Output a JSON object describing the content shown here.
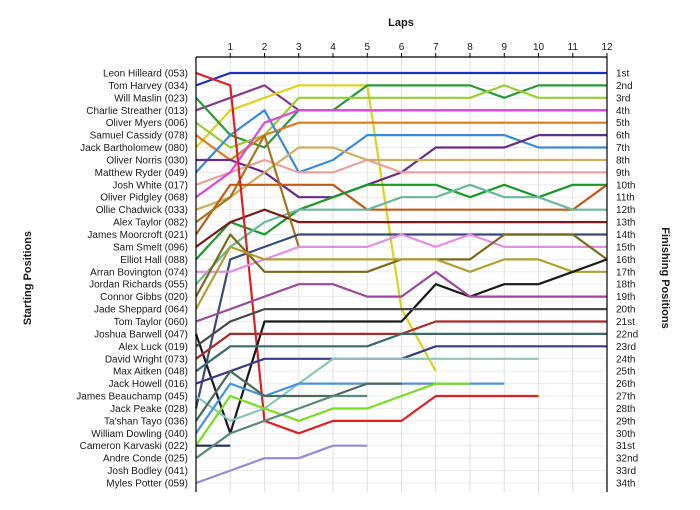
{
  "chart_data": {
    "type": "line",
    "title": "",
    "xlabel": "Laps",
    "ylabel_left": "Starting Positions",
    "ylabel_right": "Finishing Positions",
    "x_ticks": [
      "1",
      "2",
      "3",
      "4",
      "5",
      "6",
      "7",
      "8",
      "9",
      "10",
      "11",
      "12"
    ],
    "xlim": [
      0,
      12
    ],
    "ylim": [
      1,
      34
    ],
    "y_inverted": true,
    "grid": true,
    "drivers": [
      "Leon Hilleard (053)",
      "Tom Harvey (034)",
      "Will Maslin (023)",
      "Charlie Streather (013)",
      "Oliver Myers (006)",
      "Samuel Cassidy (078)",
      "Jack Bartholomew (080)",
      "Oliver Norris (030)",
      "Matthew Ryder (049)",
      "Josh White (017)",
      "Oliver Pidgley (068)",
      "Ollie Chadwick (033)",
      "Alex Taylor (082)",
      "James Moorcroft (021)",
      "Sam Smelt (096)",
      "Elliot Hall (088)",
      "Arran Bovington (074)",
      "Jordan Richards (055)",
      "Connor Gibbs (020)",
      "Jade Sheppard (064)",
      "Tom Taylor (060)",
      "Joshua Barwell (047)",
      "Alex Luck (019)",
      "David Wright (073)",
      "Max Aitken (048)",
      "Jack Howell (016)",
      "James Beauchamp (045)",
      "Jack Peake (028)",
      "Ta'shan Tayo (036)",
      "William Dowling (040)",
      "Cameron Karvaski (022)",
      "Andre Conde (025)",
      "Josh Bodley (041)",
      "Myles Potter (059)"
    ],
    "finishing_positions": [
      "1st",
      "2nd",
      "3rd",
      "4th",
      "5th",
      "6th",
      "7th",
      "8th",
      "9th",
      "10th",
      "11th",
      "12th",
      "13th",
      "14th",
      "15th",
      "16th",
      "17th",
      "18th",
      "19th",
      "20th",
      "21st",
      "22nd",
      "23rd",
      "24th",
      "25th",
      "26th",
      "27th",
      "28th",
      "29th",
      "30th",
      "31st",
      "32nd",
      "33rd",
      "34th"
    ],
    "series": [
      {
        "color": "#1f2fbf",
        "values": [
          2,
          1,
          1,
          1,
          1,
          1,
          1,
          1,
          1,
          1,
          1,
          1,
          1
        ]
      },
      {
        "color": "#8a3a8a",
        "values": [
          4,
          3,
          2,
          4,
          4,
          4,
          4,
          4,
          4,
          4,
          4,
          4,
          4
        ]
      },
      {
        "color": "#e0d020",
        "values": [
          7,
          4,
          3,
          2,
          2,
          2,
          20,
          25,
          null,
          null,
          null,
          null,
          null
        ]
      },
      {
        "color": "#2a9a3a",
        "values": [
          3,
          6,
          7,
          4,
          4,
          2,
          2,
          2,
          2,
          3,
          2,
          2,
          2
        ]
      },
      {
        "color": "#9acd32",
        "values": [
          5,
          7,
          6,
          3,
          3,
          3,
          3,
          3,
          3,
          2,
          3,
          3,
          3
        ]
      },
      {
        "color": "#e07820",
        "values": [
          6,
          8,
          6,
          5,
          5,
          5,
          5,
          5,
          5,
          5,
          5,
          5,
          5
        ]
      },
      {
        "color": "#3a8ad8",
        "values": [
          9,
          6,
          4,
          9,
          8,
          6,
          6,
          6,
          6,
          6,
          7,
          7,
          7
        ]
      },
      {
        "color": "#6a2a8a",
        "values": [
          8,
          8,
          9,
          11,
          11,
          10,
          9,
          7,
          7,
          7,
          6,
          6,
          6
        ]
      },
      {
        "color": "#e8a0a0",
        "values": [
          10,
          9,
          8,
          9,
          9,
          8,
          9,
          9,
          9,
          9,
          9,
          9,
          9
        ]
      },
      {
        "color": "#ccb060",
        "values": [
          12,
          11,
          9,
          7,
          7,
          8,
          8,
          8,
          8,
          8,
          8,
          8,
          8
        ]
      },
      {
        "color": "#d84ad8",
        "values": [
          11,
          9,
          5,
          4,
          4,
          4,
          4,
          4,
          4,
          4,
          4,
          4,
          4
        ]
      },
      {
        "color": "#c45a1a",
        "values": [
          14,
          10,
          10,
          10,
          10,
          12,
          12,
          12,
          12,
          12,
          12,
          12,
          10
        ]
      },
      {
        "color": "#189a2a",
        "values": [
          16,
          13,
          14,
          12,
          11,
          10,
          10,
          10,
          11,
          10,
          11,
          10,
          10
        ]
      },
      {
        "color": "#6ab8a0",
        "values": [
          18,
          15,
          13,
          12,
          12,
          12,
          11,
          11,
          10,
          11,
          11,
          12,
          12
        ]
      },
      {
        "color": "#7a1a1a",
        "values": [
          15,
          13,
          12,
          13,
          13,
          13,
          13,
          13,
          13,
          13,
          13,
          13,
          13
        ]
      },
      {
        "color": "#a8741a",
        "values": [
          13,
          11,
          6,
          15,
          null,
          null,
          null,
          null,
          null,
          null,
          null,
          null,
          null
        ]
      },
      {
        "color": "#3a4a7a",
        "values": [
          28,
          16,
          15,
          14,
          14,
          14,
          14,
          14,
          14,
          14,
          14,
          14,
          14
        ]
      },
      {
        "color": "#e02020",
        "values": [
          1,
          2,
          29,
          30,
          29,
          29,
          29,
          27,
          27,
          27,
          27,
          null,
          null
        ]
      },
      {
        "color": "#e88ae8",
        "values": [
          17,
          17,
          16,
          15,
          15,
          15,
          14,
          15,
          14,
          15,
          15,
          15,
          15
        ]
      },
      {
        "color": "#7a6a1a",
        "values": [
          19,
          14,
          17,
          17,
          17,
          17,
          16,
          16,
          16,
          14,
          14,
          14,
          16
        ]
      },
      {
        "color": "#b0a030",
        "values": [
          20,
          15,
          16,
          16,
          16,
          16,
          16,
          16,
          17,
          16,
          16,
          17,
          17
        ]
      },
      {
        "color": "#1a1a1a",
        "values": [
          22,
          30,
          21,
          21,
          21,
          21,
          21,
          18,
          19,
          18,
          18,
          17,
          16
        ]
      },
      {
        "color": "#9a4a9a",
        "values": [
          21,
          20,
          19,
          18,
          18,
          19,
          19,
          17,
          19,
          19,
          19,
          19,
          19
        ]
      },
      {
        "color": "#4a4a4a",
        "values": [
          23,
          21,
          20,
          20,
          20,
          20,
          20,
          20,
          20,
          20,
          20,
          20,
          20
        ]
      },
      {
        "color": "#a82a2a",
        "values": [
          24,
          22,
          22,
          22,
          22,
          22,
          22,
          21,
          21,
          21,
          21,
          21,
          21
        ]
      },
      {
        "color": "#3a6a6a",
        "values": [
          25,
          23,
          23,
          23,
          23,
          23,
          22,
          22,
          22,
          22,
          22,
          22,
          22
        ]
      },
      {
        "color": "#3a3a8a",
        "values": [
          26,
          25,
          24,
          24,
          24,
          24,
          24,
          23,
          23,
          23,
          23,
          23,
          23
        ]
      },
      {
        "color": "#88c8b8",
        "values": [
          27,
          29,
          28,
          26,
          24,
          24,
          24,
          24,
          24,
          24,
          24,
          null,
          null
        ]
      },
      {
        "color": "#4890e0",
        "values": [
          30,
          26,
          27,
          26,
          26,
          26,
          26,
          26,
          26,
          26,
          null,
          null,
          null
        ]
      },
      {
        "color": "#78dd20",
        "values": [
          31,
          27,
          28,
          29,
          28,
          28,
          27,
          26,
          26,
          null,
          null,
          null,
          null
        ]
      },
      {
        "color": "#4a6a5a",
        "values": [
          29,
          25,
          27,
          27,
          27,
          26,
          26,
          null,
          null,
          null,
          null,
          null,
          null
        ]
      },
      {
        "color": "#1a2a5a",
        "values": [
          31,
          31,
          null,
          null,
          null,
          null,
          null,
          null,
          null,
          null,
          null,
          null,
          null
        ]
      },
      {
        "color": "#5a8a7a",
        "values": [
          32,
          30,
          29,
          28,
          27,
          27,
          null,
          null,
          null,
          null,
          null,
          null,
          null
        ]
      },
      {
        "color": "#9a88d8",
        "values": [
          34,
          33,
          32,
          32,
          31,
          31,
          null,
          null,
          null,
          null,
          null,
          null,
          null
        ]
      }
    ]
  }
}
